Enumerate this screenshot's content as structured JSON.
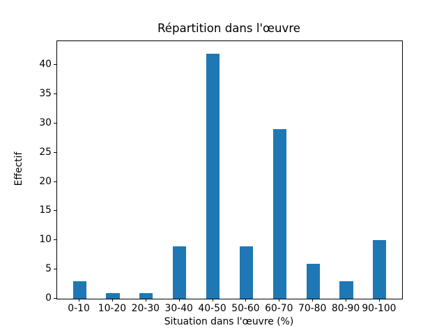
{
  "chart_data": {
    "type": "bar",
    "title": "Répartition dans l'œuvre",
    "xlabel": "Situation dans l'œuvre (%)",
    "ylabel": "Effectif",
    "categories": [
      "0-10",
      "10-20",
      "20-30",
      "30-40",
      "40-50",
      "50-60",
      "60-70",
      "70-80",
      "80-90",
      "90-100"
    ],
    "values": [
      3,
      1,
      1,
      9,
      42,
      9,
      29,
      6,
      3,
      10
    ],
    "yticks": [
      0,
      5,
      10,
      15,
      20,
      25,
      30,
      35,
      40
    ],
    "ylim": [
      0,
      44.1
    ],
    "bar_color": "#1f77b4",
    "axis_color": "#000000",
    "background_color": "#ffffff",
    "grid": false,
    "legend_position": "none"
  }
}
